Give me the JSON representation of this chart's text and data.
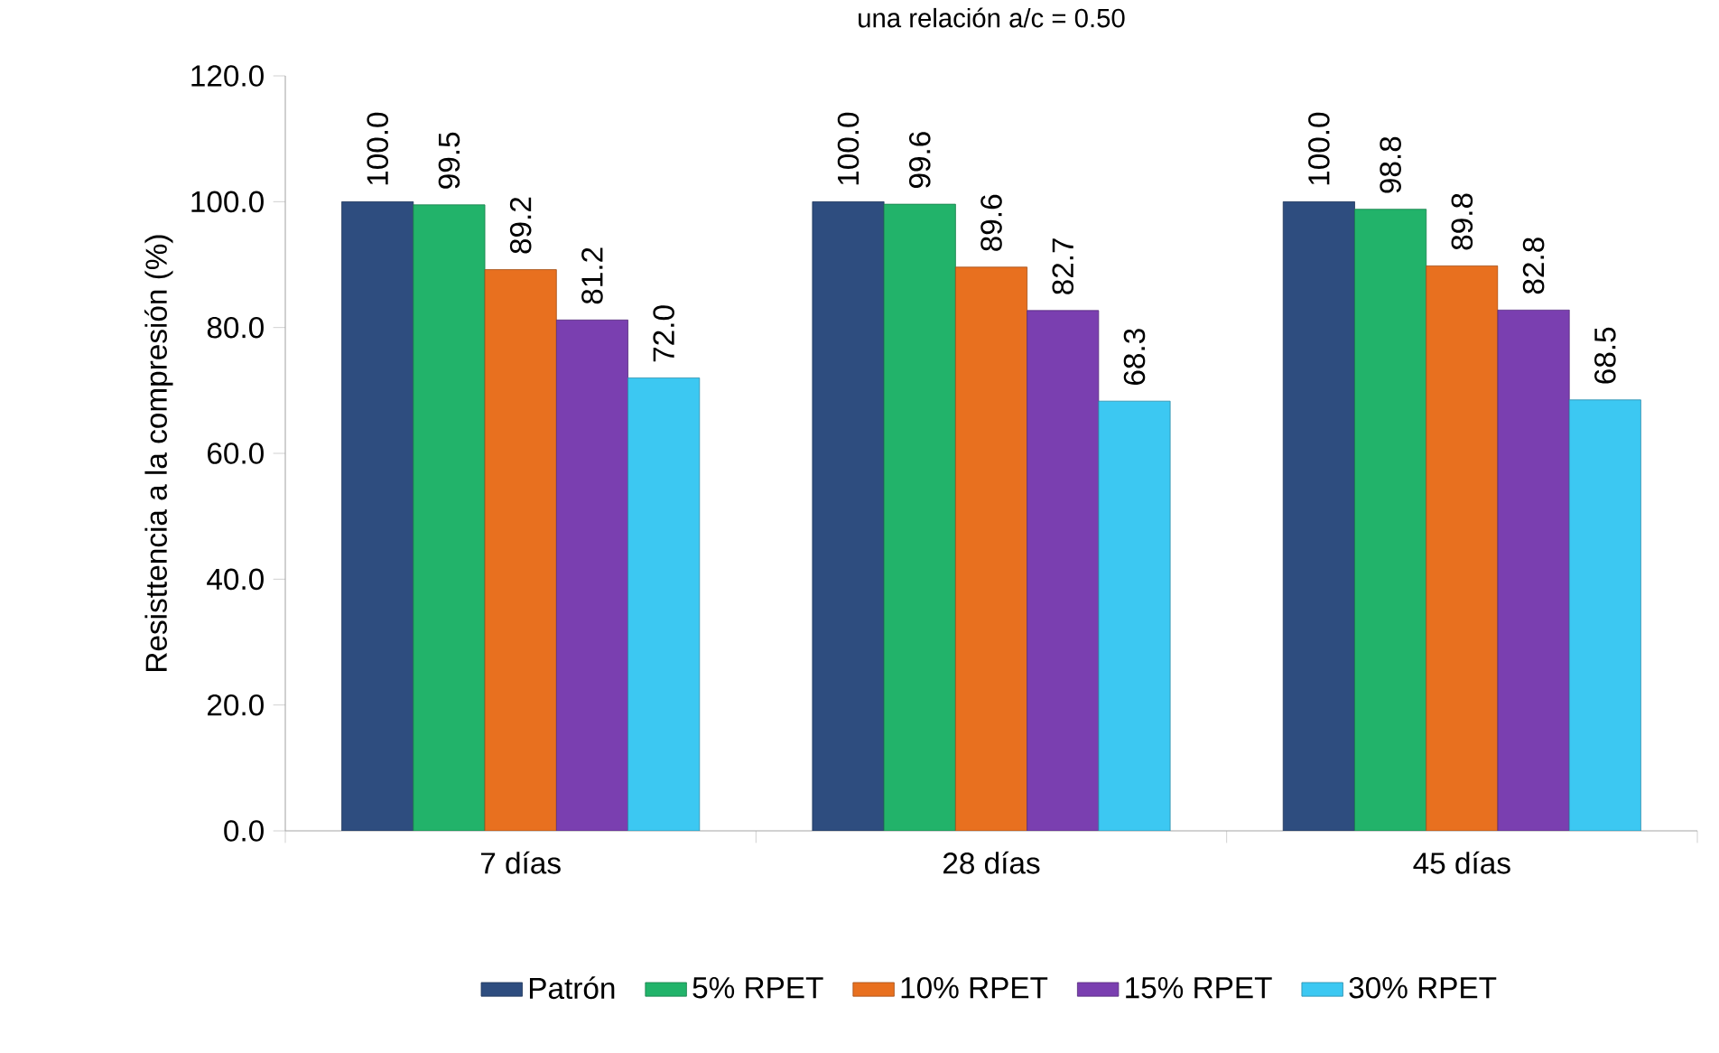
{
  "chart_data": {
    "type": "bar",
    "title": "una relación a/c = 0.50",
    "ylabel": "Resisttencia a la compresión (%)",
    "categories": [
      "7 días",
      "28 días",
      "45 días"
    ],
    "series": [
      {
        "name": "Patrón",
        "color": "#2e4d7f",
        "values": [
          100.0,
          100.0,
          100.0
        ],
        "value_labels": [
          "100.0",
          "100.0",
          "100.0"
        ]
      },
      {
        "name": "5% RPET",
        "color": "#22b36a",
        "values": [
          99.5,
          99.6,
          98.8
        ],
        "value_labels": [
          "99.5",
          "99.6",
          "98.8"
        ]
      },
      {
        "name": "10% RPET",
        "color": "#e8701f",
        "values": [
          89.2,
          89.6,
          89.8
        ],
        "value_labels": [
          "89.2",
          "89.6",
          "89.8"
        ]
      },
      {
        "name": "15% RPET",
        "color": "#7a3fb0",
        "values": [
          81.2,
          82.7,
          82.8
        ],
        "value_labels": [
          "81.2",
          "82.7",
          "82.8"
        ]
      },
      {
        "name": "30% RPET",
        "color": "#3cc8f2",
        "values": [
          72.0,
          68.3,
          68.5
        ],
        "value_labels": [
          "72.0",
          "68.3",
          "68.5"
        ]
      }
    ],
    "ylim": [
      0,
      120
    ],
    "yticks": [
      {
        "value": 0,
        "label": "0.0"
      },
      {
        "value": 20,
        "label": "20.0"
      },
      {
        "value": 40,
        "label": "40.0"
      },
      {
        "value": 60,
        "label": "60.0"
      },
      {
        "value": 80,
        "label": "80.0"
      },
      {
        "value": 100,
        "label": "100.0"
      },
      {
        "value": 120,
        "label": "120.0"
      }
    ],
    "legend": "bottom"
  }
}
